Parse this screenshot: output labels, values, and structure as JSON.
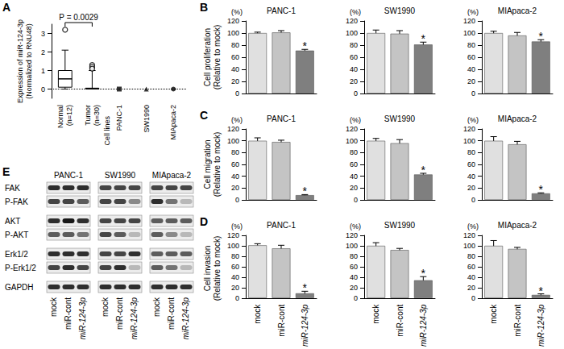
{
  "chart_data": [
    {
      "panel": "A",
      "type": "boxplot",
      "y_label": "Expression of miR-124-3p\n(Normalized to RNU48)",
      "categories": [
        "Normal\n(n=12)",
        "Tumor\n(n=30)",
        "PANC-1",
        "SW1990",
        "MIApaca-2"
      ],
      "group_label": "Cell lines",
      "boxes": [
        {
          "min": 0,
          "q1": 0.1,
          "median": 0.55,
          "q3": 1.0,
          "max": 2.1
        },
        {
          "min": 0,
          "q1": 0,
          "median": 0.02,
          "q3": 0.05,
          "max": 1.0
        },
        null,
        null,
        null
      ],
      "outliers": [
        [
          3.2
        ],
        [
          1.3,
          1.2,
          1.1
        ],
        [],
        [],
        []
      ],
      "points": {
        "values": [
          null,
          null,
          0,
          0,
          0
        ],
        "marker": [
          null,
          null,
          "square",
          "triangle",
          "circle"
        ]
      },
      "annotation": "P = 0.0029",
      "reference_line": 0,
      "color": "#000000",
      "ylim": [
        -0.5,
        3.5
      ],
      "yticks": [
        0,
        1,
        2,
        3
      ],
      "grid": false
    },
    {
      "panel": "B",
      "type": "bar",
      "title": "PANC-1",
      "unit_label": "(%)",
      "y_label": "Cell proliferation\n(Relative to mock)",
      "categories": [
        "mock",
        "miR-cont",
        "miR-124-3p"
      ],
      "values": [
        100,
        101,
        71
      ],
      "errors": [
        1.5,
        3,
        2
      ],
      "significance": [
        null,
        null,
        "*"
      ],
      "colors": [
        "#e0e0e0",
        "#c4c4c4",
        "#7f7f7f"
      ],
      "ylim": [
        0,
        120
      ],
      "yticks": [
        0,
        20,
        40,
        60,
        80,
        100,
        120
      ],
      "grid": false,
      "tick_labels": "y"
    },
    {
      "type": "bar",
      "title": "SW1990",
      "unit_label": "(%)",
      "categories": [
        "mock",
        "miR-cont",
        "miR-124-3p"
      ],
      "values": [
        100,
        99,
        81
      ],
      "errors": [
        5,
        5,
        4
      ],
      "significance": [
        null,
        null,
        "*"
      ],
      "colors": [
        "#e0e0e0",
        "#c4c4c4",
        "#7f7f7f"
      ],
      "ylim": [
        0,
        120
      ],
      "yticks": [
        0,
        20,
        40,
        60,
        80,
        100,
        120
      ],
      "grid": false,
      "tick_labels": "y"
    },
    {
      "type": "bar",
      "title": "MIApaca-2",
      "unit_label": "(%)",
      "categories": [
        "mock",
        "miR-cont",
        "miR-124-3p"
      ],
      "values": [
        100,
        96,
        86
      ],
      "errors": [
        3,
        5,
        3
      ],
      "significance": [
        null,
        null,
        "*"
      ],
      "colors": [
        "#e0e0e0",
        "#c4c4c4",
        "#7f7f7f"
      ],
      "ylim": [
        0,
        120
      ],
      "yticks": [
        0,
        20,
        40,
        60,
        80,
        100,
        120
      ],
      "grid": false,
      "tick_labels": "y"
    },
    {
      "panel": "C",
      "type": "bar",
      "title": "PANC-1",
      "unit_label": "(%)",
      "y_label": "Cell migration\n(Relative to mock)",
      "categories": [
        "mock",
        "miR-cont",
        "miR-124-3p"
      ],
      "values": [
        100,
        98,
        8
      ],
      "errors": [
        5,
        3,
        1
      ],
      "significance": [
        null,
        null,
        "*"
      ],
      "colors": [
        "#e0e0e0",
        "#c4c4c4",
        "#7f7f7f"
      ],
      "ylim": [
        0,
        120
      ],
      "yticks": [
        0,
        20,
        40,
        60,
        80,
        100,
        120
      ],
      "grid": false,
      "tick_labels": "y"
    },
    {
      "type": "bar",
      "title": "SW1990",
      "unit_label": "(%)",
      "categories": [
        "mock",
        "miR-cont",
        "miR-124-3p"
      ],
      "values": [
        100,
        96,
        43
      ],
      "errors": [
        4,
        6,
        2
      ],
      "significance": [
        null,
        null,
        "*"
      ],
      "colors": [
        "#e0e0e0",
        "#c4c4c4",
        "#7f7f7f"
      ],
      "ylim": [
        0,
        120
      ],
      "yticks": [
        0,
        20,
        40,
        60,
        80,
        100,
        120
      ],
      "grid": false,
      "tick_labels": "y"
    },
    {
      "type": "bar",
      "title": "MIApaca-2",
      "unit_label": "(%)",
      "categories": [
        "mock",
        "miR-cont",
        "miR-124-3p"
      ],
      "values": [
        100,
        94,
        11
      ],
      "errors": [
        7,
        5,
        1
      ],
      "significance": [
        null,
        null,
        "*"
      ],
      "colors": [
        "#e0e0e0",
        "#c4c4c4",
        "#7f7f7f"
      ],
      "ylim": [
        0,
        120
      ],
      "yticks": [
        0,
        20,
        40,
        60,
        80,
        100,
        120
      ],
      "grid": false,
      "tick_labels": "y"
    },
    {
      "panel": "D",
      "type": "bar",
      "title": "PANC-1",
      "unit_label": "(%)",
      "y_label": "Cell invasion\n(Relative to mock)",
      "categories": [
        "mock",
        "miR-cont",
        "miR-124-3p"
      ],
      "values": [
        101,
        95,
        9
      ],
      "errors": [
        3,
        6,
        4
      ],
      "significance": [
        null,
        null,
        "*"
      ],
      "colors": [
        "#e0e0e0",
        "#c4c4c4",
        "#7f7f7f"
      ],
      "ylim": [
        0,
        120
      ],
      "yticks": [
        0,
        20,
        40,
        60,
        80,
        100,
        120
      ],
      "grid": false
    },
    {
      "type": "bar",
      "title": "SW1990",
      "unit_label": "(%)",
      "categories": [
        "mock",
        "miR-cont",
        "miR-124-3p"
      ],
      "values": [
        100,
        92,
        34
      ],
      "errors": [
        6,
        3,
        7
      ],
      "significance": [
        null,
        null,
        "*"
      ],
      "colors": [
        "#e0e0e0",
        "#c4c4c4",
        "#7f7f7f"
      ],
      "ylim": [
        0,
        120
      ],
      "yticks": [
        0,
        20,
        40,
        60,
        80,
        100,
        120
      ],
      "grid": false
    },
    {
      "type": "bar",
      "title": "MIApaca-2",
      "unit_label": "(%)",
      "categories": [
        "mock",
        "miR-cont",
        "miR-124-3p"
      ],
      "values": [
        100,
        94,
        6
      ],
      "errors": [
        10,
        3,
        2
      ],
      "significance": [
        null,
        null,
        "*"
      ],
      "colors": [
        "#e0e0e0",
        "#c4c4c4",
        "#7f7f7f"
      ],
      "ylim": [
        0,
        120
      ],
      "yticks": [
        0,
        20,
        40,
        60,
        80,
        100,
        120
      ],
      "grid": false
    }
  ],
  "western_blot": {
    "panel": "E",
    "titles": [
      "PANC-1",
      "SW1990",
      "MIApaca-2"
    ],
    "lanes": [
      "mock",
      "miR-cont",
      "miR-124-3p"
    ],
    "rows": [
      {
        "label": "FAK",
        "intensity": [
          [
            0.8,
            0.8,
            0.8
          ],
          [
            0.7,
            0.7,
            0.7
          ],
          [
            0.7,
            0.7,
            0.7
          ]
        ]
      },
      {
        "label": "P-FAK",
        "intensity": [
          [
            0.7,
            0.7,
            0.6
          ],
          [
            0.7,
            0.7,
            0.4
          ],
          [
            0.8,
            0.5,
            0.2
          ]
        ]
      },
      {
        "label": "AKT",
        "intensity": [
          [
            0.8,
            0.9,
            0.8
          ],
          [
            0.7,
            0.7,
            0.7
          ],
          [
            0.6,
            0.6,
            0.6
          ]
        ]
      },
      {
        "label": "P-AKT",
        "intensity": [
          [
            0.6,
            0.6,
            0.5
          ],
          [
            0.7,
            0.6,
            0.2
          ],
          [
            0.6,
            0.4,
            0.2
          ]
        ]
      },
      {
        "label": "Erk1/2",
        "intensity": [
          [
            0.8,
            0.8,
            0.8
          ],
          [
            0.7,
            0.7,
            0.8
          ],
          [
            0.6,
            0.6,
            0.6
          ]
        ]
      },
      {
        "label": "P-Erk1/2",
        "intensity": [
          [
            0.7,
            0.8,
            0.7
          ],
          [
            0.7,
            0.8,
            0.2
          ],
          [
            0.6,
            0.5,
            0.2
          ]
        ]
      },
      {
        "label": "GAPDH",
        "intensity": [
          [
            0.8,
            0.8,
            0.8
          ],
          [
            0.8,
            0.8,
            0.8
          ],
          [
            0.8,
            0.8,
            0.8
          ]
        ]
      }
    ]
  }
}
